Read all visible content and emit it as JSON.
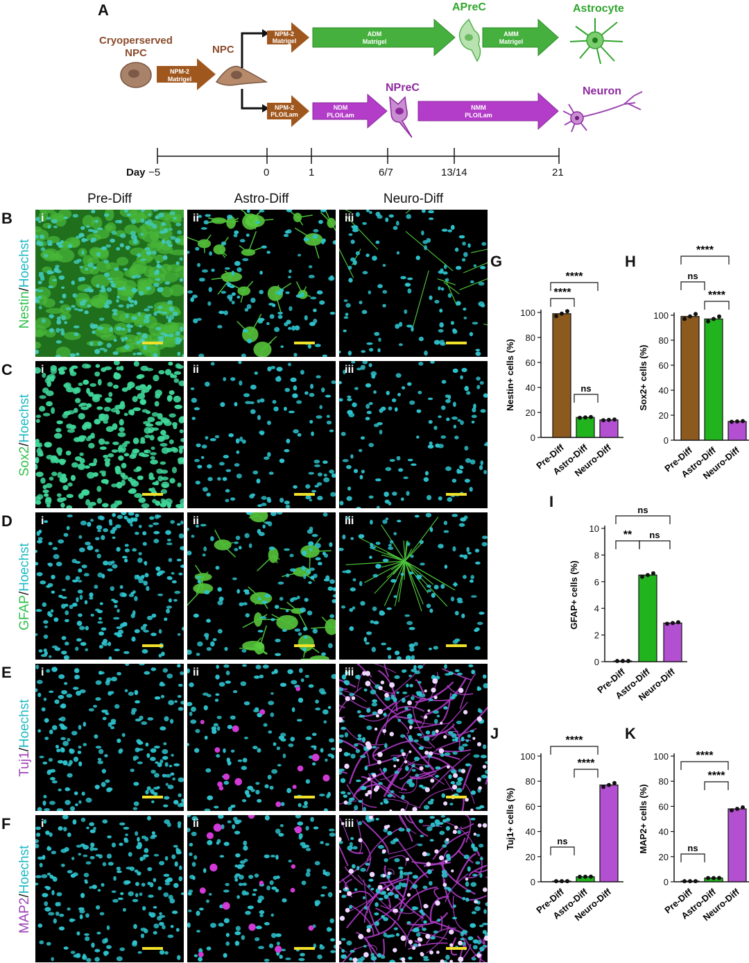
{
  "panel_letters": {
    "A": "A",
    "B": "B",
    "C": "C",
    "D": "D",
    "E": "E",
    "F": "F",
    "G": "G",
    "H": "H",
    "I": "I",
    "J": "J",
    "K": "K"
  },
  "schematic": {
    "cryo_line1": "Cryoperserved",
    "cryo_line2": "NPC",
    "npc": "NPC",
    "apreC": "APreC",
    "astrocyte": "Astrocyte",
    "nprec": "NPreC",
    "neuron": "Neuron",
    "arrows": {
      "npm2_matrigel_1": [
        "NPM-2",
        "Matrigel"
      ],
      "npm2_matrigel_2": [
        "NPM-2",
        "Matrigel"
      ],
      "adm": [
        "ADM",
        "Matrigel"
      ],
      "amm": [
        "AMM",
        "Matrigel"
      ],
      "npm2_plo": [
        "NPM-2",
        "PLO/Lam"
      ],
      "ndm": [
        "NDM",
        "PLO/Lam"
      ],
      "nmm": [
        "NMM",
        "PLO/Lam"
      ]
    },
    "timeline": {
      "label": "Day",
      "ticks": [
        "−5",
        "0",
        "1",
        "6/7",
        "13/14",
        "21"
      ]
    }
  },
  "columns": [
    "Pre-Diff",
    "Astro-Diff",
    "Neuro-Diff"
  ],
  "rows": [
    {
      "marker": "Nestin",
      "counter": "Hoechst",
      "marker_color": "#2fbf4a"
    },
    {
      "marker": "Sox2",
      "counter": "Hoechst",
      "marker_color": "#2fbf4a"
    },
    {
      "marker": "GFAP",
      "counter": "Hoechst",
      "marker_color": "#2fbf4a"
    },
    {
      "marker": "Tuj1",
      "counter": "Hoechst",
      "marker_color": "#9b3fb5"
    },
    {
      "marker": "MAP2",
      "counter": "Hoechst",
      "marker_color": "#9b3fb5"
    }
  ],
  "slash": "/",
  "roman": [
    "i",
    "ii",
    "iii"
  ],
  "colors": {
    "pre": "#8c5a1e",
    "astro": "#22b41e",
    "neuro": "#b34fd1",
    "hoechst": "#1fb9c4"
  },
  "chart_data": [
    {
      "panel": "G",
      "type": "bar",
      "categories": [
        "Pre-Diff",
        "Astro-Diff",
        "Neuro-Diff"
      ],
      "values": [
        99,
        16,
        14
      ],
      "ylabel": "Nestin+ cells (%)",
      "ylim": [
        0,
        100
      ],
      "ticks": [
        "0",
        "20",
        "40",
        "60",
        "80",
        "100"
      ],
      "sig": [
        {
          "label": "****"
        },
        {
          "label": "****"
        },
        {
          "label": "ns"
        }
      ]
    },
    {
      "panel": "H",
      "type": "bar",
      "categories": [
        "Pre-Diff",
        "Astro-Diff",
        "Neuro-Diff"
      ],
      "values": [
        99,
        97,
        15
      ],
      "ylabel": "Sox2+ cells (%)",
      "ylim": [
        0,
        100
      ],
      "ticks": [
        "0",
        "20",
        "40",
        "60",
        "80",
        "100"
      ],
      "sig": [
        {
          "label": "****"
        },
        {
          "label": "ns"
        },
        {
          "label": "****"
        }
      ]
    },
    {
      "panel": "I",
      "type": "bar",
      "categories": [
        "Pre-Diff",
        "Astro-Diff",
        "Neuro-Diff"
      ],
      "values": [
        0.05,
        6.5,
        2.9
      ],
      "ylabel": "GFAP+ cells (%)",
      "ylim": [
        0,
        10
      ],
      "ticks": [
        "0",
        "2",
        "4",
        "6",
        "8",
        "10"
      ],
      "sig": [
        {
          "label": "ns"
        },
        {
          "label": "**"
        },
        {
          "label": "ns"
        }
      ]
    },
    {
      "panel": "J",
      "type": "bar",
      "categories": [
        "Pre-Diff",
        "Astro-Diff",
        "Neuro-Diff"
      ],
      "values": [
        0.5,
        4,
        77
      ],
      "ylabel": "Tuj1+ cells (%)",
      "ylim": [
        0,
        100
      ],
      "ticks": [
        "0",
        "20",
        "40",
        "60",
        "80",
        "100"
      ],
      "sig": [
        {
          "label": "****"
        },
        {
          "label": "****"
        },
        {
          "label": "ns"
        }
      ]
    },
    {
      "panel": "K",
      "type": "bar",
      "categories": [
        "Pre-Diff",
        "Astro-Diff",
        "Neuro-Diff"
      ],
      "values": [
        0.5,
        3,
        58
      ],
      "ylabel": "MAP2+ cells (%)",
      "ylim": [
        0,
        100
      ],
      "ticks": [
        "0",
        "20",
        "40",
        "60",
        "80",
        "100"
      ],
      "sig": [
        {
          "label": "****"
        },
        {
          "label": "****"
        },
        {
          "label": "ns"
        }
      ]
    }
  ]
}
